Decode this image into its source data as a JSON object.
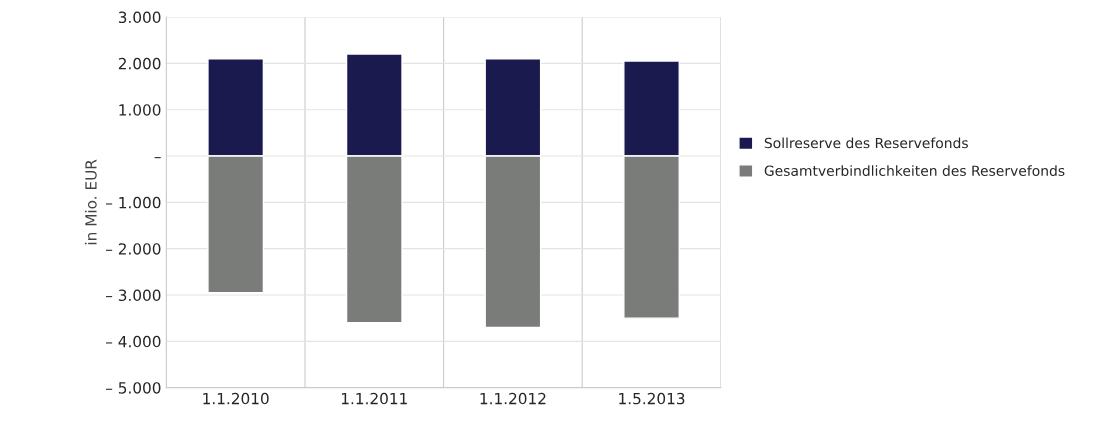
{
  "chart_data": {
    "type": "bar",
    "stacked": true,
    "ylabel": "in Mio. EUR",
    "categories": [
      "1.1.2010",
      "1.1.2011",
      "1.1.2012",
      "1.5.2013"
    ],
    "series": [
      {
        "name": "Sollreserve des Reservefonds",
        "color": "#1b1a4e",
        "values": [
          2100,
          2200,
          2100,
          2050
        ]
      },
      {
        "name": "Gesamtverbindlichkeiten des Reservefonds",
        "color": "#7a7c7a",
        "values": [
          -2950,
          -3600,
          -3700,
          -3500
        ]
      }
    ],
    "ylim": [
      -5000,
      3000
    ],
    "yticks": [
      {
        "value": -5000,
        "label": "– 5.000"
      },
      {
        "value": -4000,
        "label": "– 4.000"
      },
      {
        "value": -3000,
        "label": "– 3.000"
      },
      {
        "value": -2000,
        "label": "– 2.000"
      },
      {
        "value": -1000,
        "label": "– 1.000"
      },
      {
        "value": 0,
        "label": "–"
      },
      {
        "value": 1000,
        "label": "1.000"
      },
      {
        "value": 2000,
        "label": "2.000"
      },
      {
        "value": 3000,
        "label": "3.000"
      }
    ],
    "grid": true,
    "legend": "right"
  }
}
